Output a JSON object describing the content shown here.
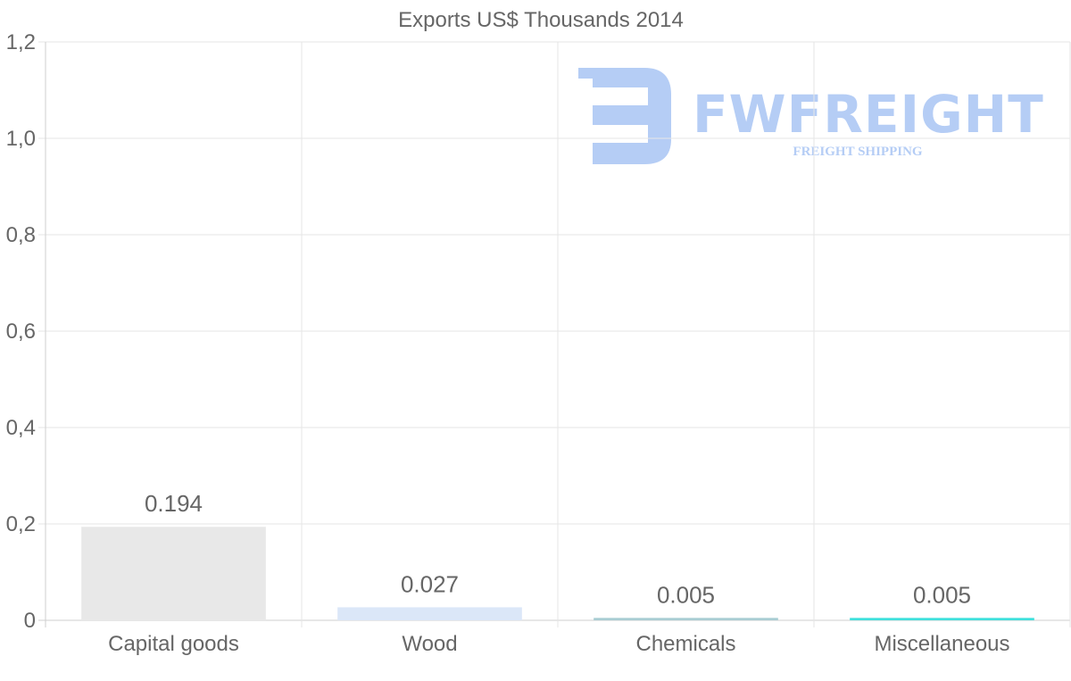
{
  "chart_data": {
    "type": "bar",
    "title": "Exports US$ Thousands 2014",
    "categories": [
      "Capital goods",
      "Wood",
      "Chemicals",
      "Miscellaneous"
    ],
    "values": [
      0.194,
      0.027,
      0.005,
      0.005
    ],
    "value_labels": [
      "0.194",
      "0.027",
      "0.005",
      "0.005"
    ],
    "bar_colors": [
      "#e8e8e8",
      "#dbe7f8",
      "#a9cdd3",
      "#3fe0dc"
    ],
    "ylim": [
      0,
      1.2
    ],
    "yticks": [
      0,
      0.2,
      0.4,
      0.6,
      0.8,
      1.0,
      1.2
    ],
    "ytick_labels": [
      "0",
      "0,2",
      "0,4",
      "0,6",
      "0,8",
      "1,0",
      "1,2"
    ],
    "xlabel": "",
    "ylabel": "",
    "grid": true
  },
  "watermark": {
    "brand": "FWFREIGHT",
    "tagline": "FREIGHT SHIPPING",
    "color": "#b5cdf5"
  }
}
